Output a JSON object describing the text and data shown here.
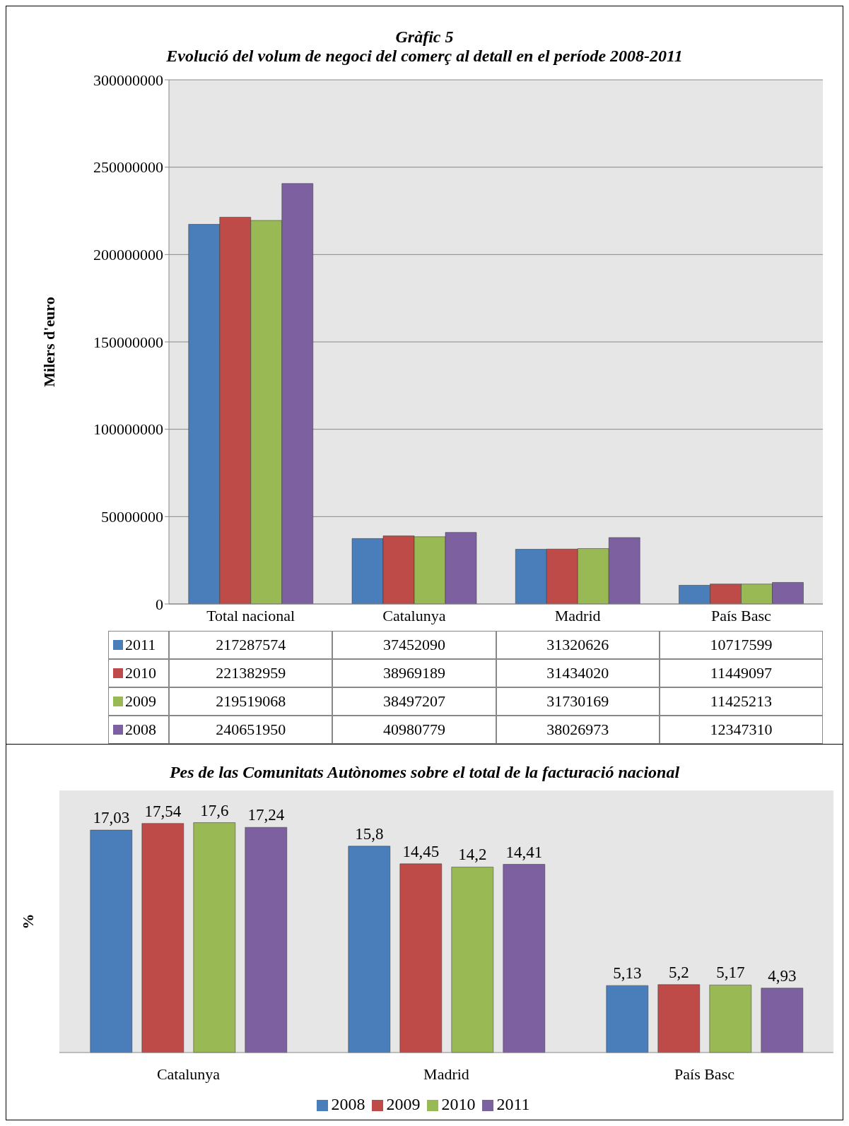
{
  "chart_data": [
    {
      "type": "bar",
      "title": "Gràfic 5",
      "subtitle": "Evolució del volum de negoci del comerç al detall en el període 2008-2011",
      "ylabel": "Milers d'euro",
      "categories": [
        "Total nacional",
        "Catalunya",
        "Madrid",
        "País Basc"
      ],
      "series": [
        {
          "name": "2011",
          "color": "#4a7ebb",
          "values": [
            217287574,
            37452090,
            31320626,
            10717599
          ]
        },
        {
          "name": "2010",
          "color": "#be4b48",
          "values": [
            221382959,
            38969189,
            31434020,
            11449097
          ]
        },
        {
          "name": "2009",
          "color": "#98b954",
          "values": [
            219519068,
            38497207,
            31730169,
            11425213
          ]
        },
        {
          "name": "2008",
          "color": "#7d60a0",
          "values": [
            240651950,
            40980779,
            38026973,
            12347310
          ]
        }
      ],
      "ylim": [
        0,
        300000000
      ],
      "yticks": [
        0,
        50000000,
        100000000,
        150000000,
        200000000,
        250000000,
        300000000
      ],
      "grid": "y",
      "data_labels": true,
      "legend": "bottom left"
    },
    {
      "type": "bar",
      "title": "Pes de las Comunitats Autònomes sobre el total de la facturació nacional",
      "ylabel": "%",
      "categories": [
        "Catalunya",
        "Madrid",
        "País Basc"
      ],
      "series": [
        {
          "name": "2008",
          "color": "#4a7ebb",
          "values": [
            17.03,
            15.8,
            5.13
          ],
          "value_labels": [
            "17,03",
            "15,8",
            "5,13"
          ]
        },
        {
          "name": "2009",
          "color": "#be4b48",
          "values": [
            17.54,
            14.45,
            5.2
          ],
          "value_labels": [
            "17,54",
            "14,45",
            "5,2"
          ]
        },
        {
          "name": "2010",
          "color": "#98b954",
          "values": [
            17.6,
            14.2,
            5.17
          ],
          "value_labels": [
            "17,6",
            "14,2",
            "5,17"
          ]
        },
        {
          "name": "2011",
          "color": "#7d60a0",
          "values": [
            17.24,
            14.41,
            4.93
          ],
          "value_labels": [
            "17,24",
            "14,41",
            "4,93"
          ]
        }
      ],
      "legend": "bottom",
      "tick_labels": "x"
    }
  ]
}
